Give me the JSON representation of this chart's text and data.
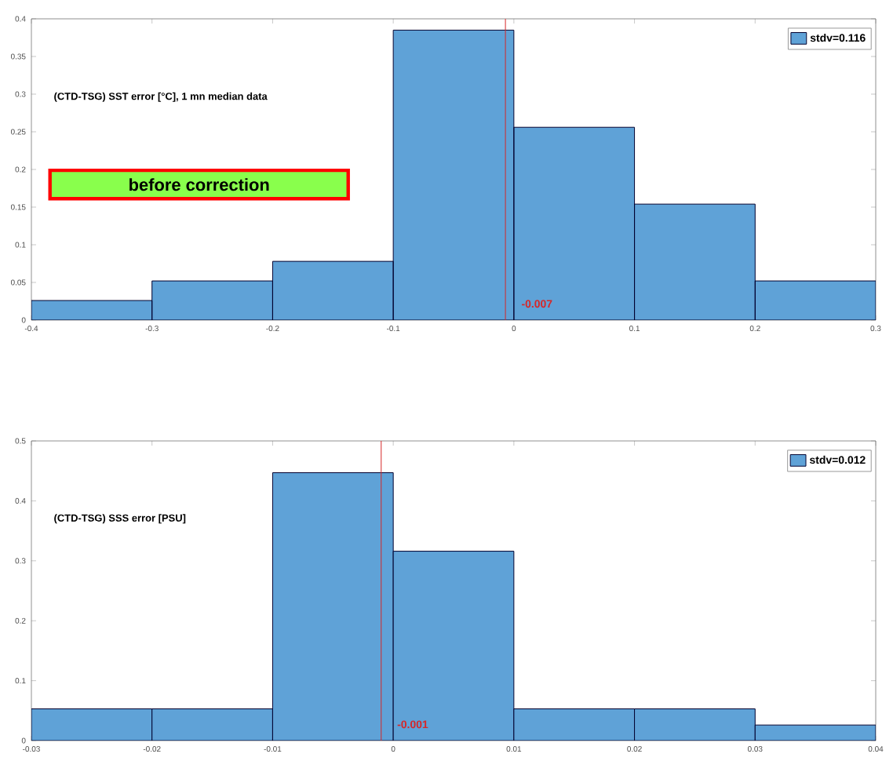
{
  "chart_data": [
    {
      "type": "histogram",
      "bins": [
        -0.4,
        -0.3,
        -0.2,
        -0.1,
        0,
        0.1,
        0.2,
        0.3
      ],
      "series": [
        {
          "name": "stdv=0.116",
          "color": "#5fa2d7",
          "values": [
            0.026,
            0.052,
            0.078,
            0.385,
            0.256,
            0.154,
            0.052
          ]
        }
      ],
      "xlim": [
        -0.4,
        0.3
      ],
      "ylim": [
        0,
        0.4
      ],
      "xticks": [
        -0.4,
        -0.3,
        -0.2,
        -0.1,
        0,
        0.1,
        0.2,
        0.3
      ],
      "yticks": [
        0,
        0.05,
        0.1,
        0.15,
        0.2,
        0.25,
        0.3,
        0.35,
        0.4
      ],
      "ref_lines": [
        {
          "axis": "x",
          "value": -0.007,
          "label": "-0.007",
          "color": "#d62728"
        }
      ],
      "annotations": [
        "(CTD-TSG) SST error [°C], 1 mn median data",
        "before correction"
      ],
      "legend": "top right"
    },
    {
      "type": "histogram",
      "bins": [
        -0.03,
        -0.02,
        -0.01,
        0,
        0.01,
        0.02,
        0.03,
        0.04
      ],
      "series": [
        {
          "name": "stdv=0.012",
          "color": "#5fa2d7",
          "values": [
            0.053,
            0.053,
            0.447,
            0.316,
            0.053,
            0.053,
            0.026
          ]
        }
      ],
      "xlim": [
        -0.03,
        0.04
      ],
      "ylim": [
        0,
        0.5
      ],
      "xticks": [
        -0.03,
        -0.02,
        -0.01,
        0,
        0.01,
        0.02,
        0.03,
        0.04
      ],
      "yticks": [
        0,
        0.1,
        0.2,
        0.3,
        0.4,
        0.5
      ],
      "ref_lines": [
        {
          "axis": "x",
          "value": -0.001,
          "label": "-0.001",
          "color": "#d62728"
        }
      ],
      "annotations": [
        "(CTD-TSG) SSS error [PSU]"
      ],
      "legend": "top right"
    }
  ]
}
